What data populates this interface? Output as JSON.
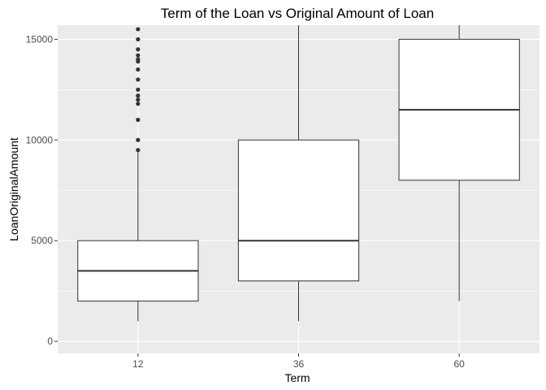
{
  "chart_data": {
    "type": "boxplot",
    "title": "Term of the Loan vs Original Amount of Loan",
    "xlabel": "Term",
    "ylabel": "LoanOriginalAmount",
    "categories": [
      "12",
      "36",
      "60"
    ],
    "ylim": [
      -600,
      15700
    ],
    "yticks": [
      0,
      5000,
      10000,
      15000
    ],
    "ytick_labels": [
      "0",
      "5000",
      "10000",
      "15000"
    ],
    "grid": true,
    "colors": {
      "panel": "#ebebeb",
      "grid": "#ffffff",
      "box_fill": "#ffffff",
      "box_stroke": "#333333",
      "outlier": "#333333"
    },
    "boxes": [
      {
        "category": "12",
        "whisker_low": 1000,
        "q1": 2000,
        "median": 3500,
        "q3": 5000,
        "whisker_high": 9500,
        "outliers": [
          9500,
          10000,
          11000,
          11800,
          12000,
          12200,
          12500,
          13000,
          13500,
          13900,
          14000,
          14200,
          14500,
          15000,
          15500
        ]
      },
      {
        "category": "36",
        "whisker_low": 1000,
        "q1": 3000,
        "median": 5000,
        "q3": 10000,
        "whisker_high": 15700,
        "outliers": []
      },
      {
        "category": "60",
        "whisker_low": 2000,
        "q1": 8000,
        "median": 11500,
        "q3": 15000,
        "whisker_high": 15700,
        "outliers": []
      }
    ]
  }
}
